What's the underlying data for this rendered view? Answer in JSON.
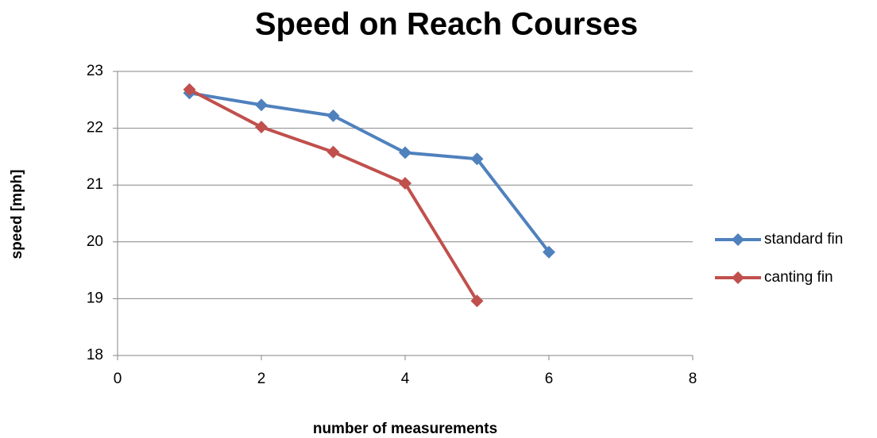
{
  "chart_data": {
    "type": "line",
    "title": "Speed on Reach Courses",
    "x_label": "number of measurements",
    "y_label": "speed [mph]",
    "x": [
      1,
      2,
      3,
      4,
      5,
      6
    ],
    "series": [
      {
        "name": "standard fin",
        "color": "#4f81bd",
        "values": [
          22.62,
          22.41,
          22.22,
          21.57,
          21.46,
          19.82
        ]
      },
      {
        "name": "canting fin",
        "color": "#c0504d",
        "values": [
          22.68,
          22.02,
          21.58,
          21.03,
          18.96,
          null
        ]
      }
    ],
    "xlim": [
      0,
      8
    ],
    "xticks": [
      0,
      2,
      4,
      6,
      8
    ],
    "ylim": [
      18,
      23
    ],
    "yticks": [
      18,
      19,
      20,
      21,
      22,
      23
    ],
    "grid": true,
    "legend": "right"
  }
}
